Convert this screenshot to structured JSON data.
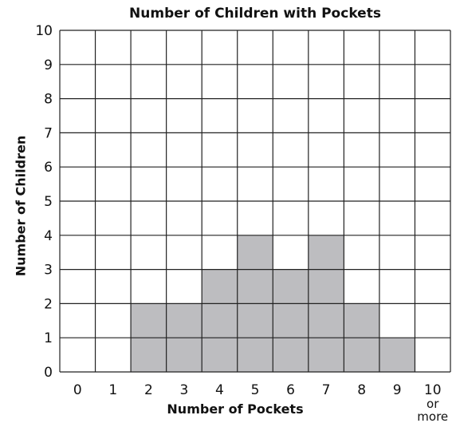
{
  "chart_data": {
    "type": "bar",
    "title": "Number of Children with Pockets",
    "xlabel": "Number of Pockets",
    "ylabel": "Number of Children",
    "categories": [
      "0",
      "1",
      "2",
      "3",
      "4",
      "5",
      "6",
      "7",
      "8",
      "9",
      "10 or more"
    ],
    "values": [
      0,
      0,
      2,
      2,
      3,
      4,
      3,
      4,
      2,
      1,
      0
    ],
    "ylim": [
      0,
      10
    ],
    "yticks": [
      "0",
      "1",
      "2",
      "3",
      "4",
      "5",
      "6",
      "7",
      "8",
      "9",
      "10"
    ],
    "grid": true,
    "bar_color": "#bdbdc0",
    "grid_color": "#222222"
  }
}
